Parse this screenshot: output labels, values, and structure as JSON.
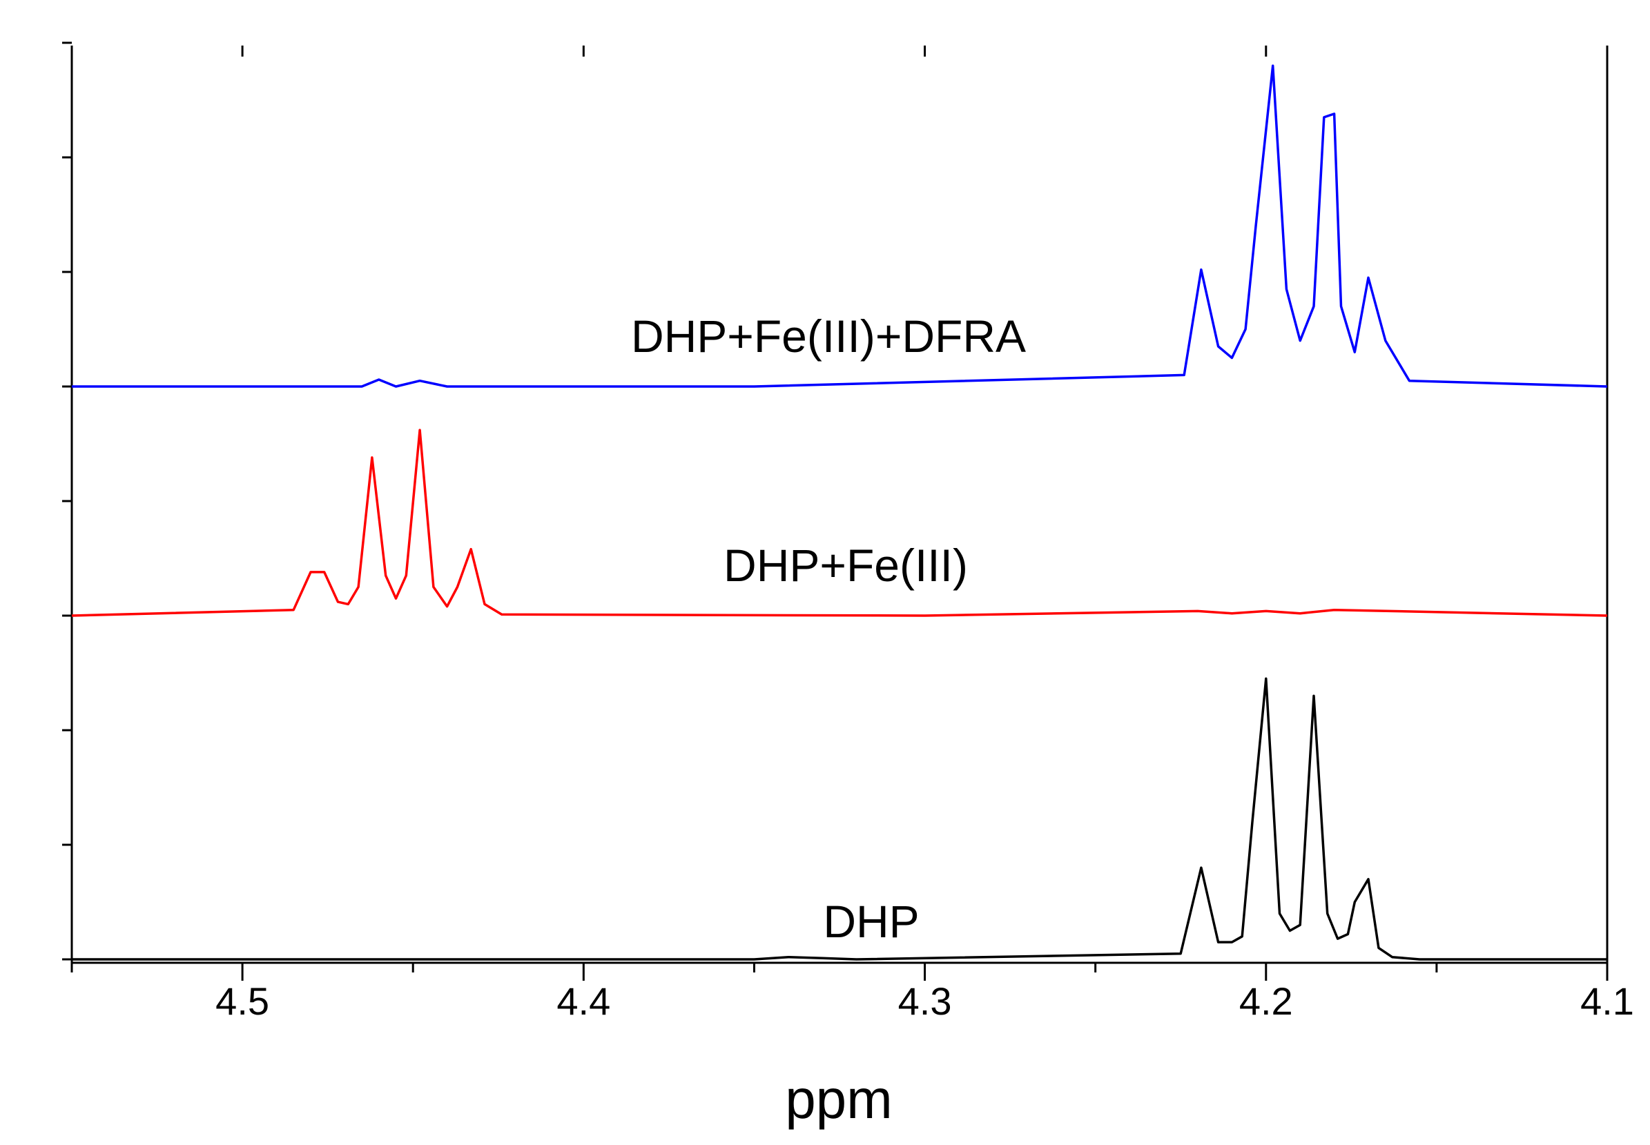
{
  "chart_data": {
    "type": "line",
    "xlabel": "ppm",
    "xlim": [
      4.55,
      4.1
    ],
    "x_reversed": true,
    "x_ticks": [
      4.5,
      4.4,
      4.3,
      4.2,
      4.1
    ],
    "x_tick_labels": [
      "4.5",
      "4.4",
      "4.3",
      "4.2",
      "4.1"
    ],
    "ylim": [
      0,
      8
    ],
    "y_ticks": [
      0,
      1,
      2,
      3,
      4,
      5,
      6,
      7,
      8
    ],
    "y_tick_labels_shown": false,
    "grid": false,
    "legend": "none",
    "series": [
      {
        "name": "DHP",
        "color": "#000000",
        "baseline": 0,
        "x": [
          4.55,
          4.35,
          4.34,
          4.33,
          4.32,
          4.225,
          4.219,
          4.214,
          4.21,
          4.207,
          4.204,
          4.2,
          4.196,
          4.193,
          4.19,
          4.186,
          4.182,
          4.179,
          4.176,
          4.174,
          4.17,
          4.167,
          4.163,
          4.155,
          4.1
        ],
        "y": [
          0.0,
          0.0,
          0.02,
          0.01,
          0.0,
          0.05,
          0.8,
          0.15,
          0.15,
          0.2,
          1.2,
          2.45,
          0.4,
          0.25,
          0.3,
          2.3,
          0.4,
          0.18,
          0.22,
          0.5,
          0.7,
          0.1,
          0.02,
          0.0,
          0.0
        ]
      },
      {
        "name": "DHP+Fe(III)",
        "color": "#ff0000",
        "baseline": 3,
        "x": [
          4.55,
          4.485,
          4.48,
          4.476,
          4.472,
          4.469,
          4.466,
          4.462,
          4.458,
          4.455,
          4.452,
          4.448,
          4.444,
          4.44,
          4.437,
          4.433,
          4.429,
          4.424,
          4.3,
          4.22,
          4.21,
          4.2,
          4.19,
          4.18,
          4.1
        ],
        "y": [
          0.0,
          0.05,
          0.38,
          0.38,
          0.12,
          0.1,
          0.25,
          1.38,
          0.35,
          0.15,
          0.35,
          1.62,
          0.25,
          0.08,
          0.25,
          0.58,
          0.1,
          0.01,
          0.0,
          0.04,
          0.02,
          0.04,
          0.02,
          0.05,
          0.0
        ]
      },
      {
        "name": "DHP+Fe(III)+DFRA",
        "color": "#0000ff",
        "baseline": 5,
        "x": [
          4.55,
          4.465,
          4.46,
          4.455,
          4.448,
          4.44,
          4.35,
          4.224,
          4.219,
          4.214,
          4.21,
          4.206,
          4.203,
          4.198,
          4.194,
          4.19,
          4.186,
          4.183,
          4.18,
          4.178,
          4.174,
          4.17,
          4.165,
          4.158,
          4.1
        ],
        "y": [
          0.0,
          0.0,
          0.06,
          0.0,
          0.05,
          0.0,
          0.0,
          0.1,
          1.02,
          0.35,
          0.25,
          0.5,
          1.4,
          2.8,
          0.85,
          0.4,
          0.7,
          2.35,
          2.38,
          0.7,
          0.3,
          0.95,
          0.4,
          0.05,
          0.0
        ]
      }
    ],
    "annotations": [
      "DHP+Fe(III)+DFRA",
      "DHP+Fe(III)",
      "DHP"
    ]
  }
}
